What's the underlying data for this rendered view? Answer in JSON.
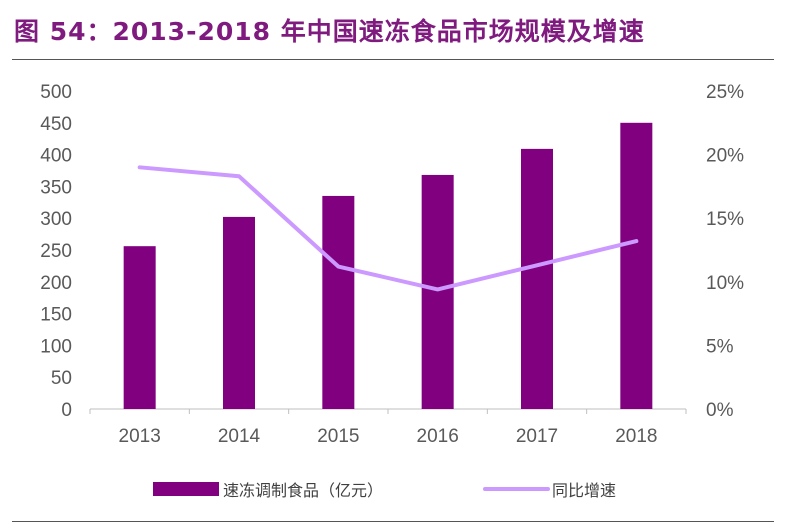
{
  "title": "图 54：2013-2018 年中国速冻食品市场规模及增速",
  "chart_data": {
    "type": "bar+line",
    "categories": [
      "2013",
      "2014",
      "2015",
      "2016",
      "2017",
      "2018"
    ],
    "series": [
      {
        "name": "速冻调制食品（亿元）",
        "type": "bar",
        "axis": "left",
        "color": "#800080",
        "values": [
          256,
          302,
          335,
          368,
          409,
          450
        ]
      },
      {
        "name": "同比增速",
        "type": "line",
        "axis": "right",
        "color": "#cc99ff",
        "values": [
          19.0,
          18.3,
          11.2,
          9.4,
          11.3,
          13.2
        ]
      }
    ],
    "left_axis": {
      "ylim": [
        0,
        500
      ],
      "ticks": [
        "0",
        "50",
        "100",
        "150",
        "200",
        "250",
        "300",
        "350",
        "400",
        "450",
        "500"
      ]
    },
    "right_axis": {
      "ylim": [
        0,
        25
      ],
      "ticks": [
        "0%",
        "5%",
        "10%",
        "15%",
        "20%",
        "25%"
      ]
    },
    "grid": false,
    "legend": "bottom"
  }
}
